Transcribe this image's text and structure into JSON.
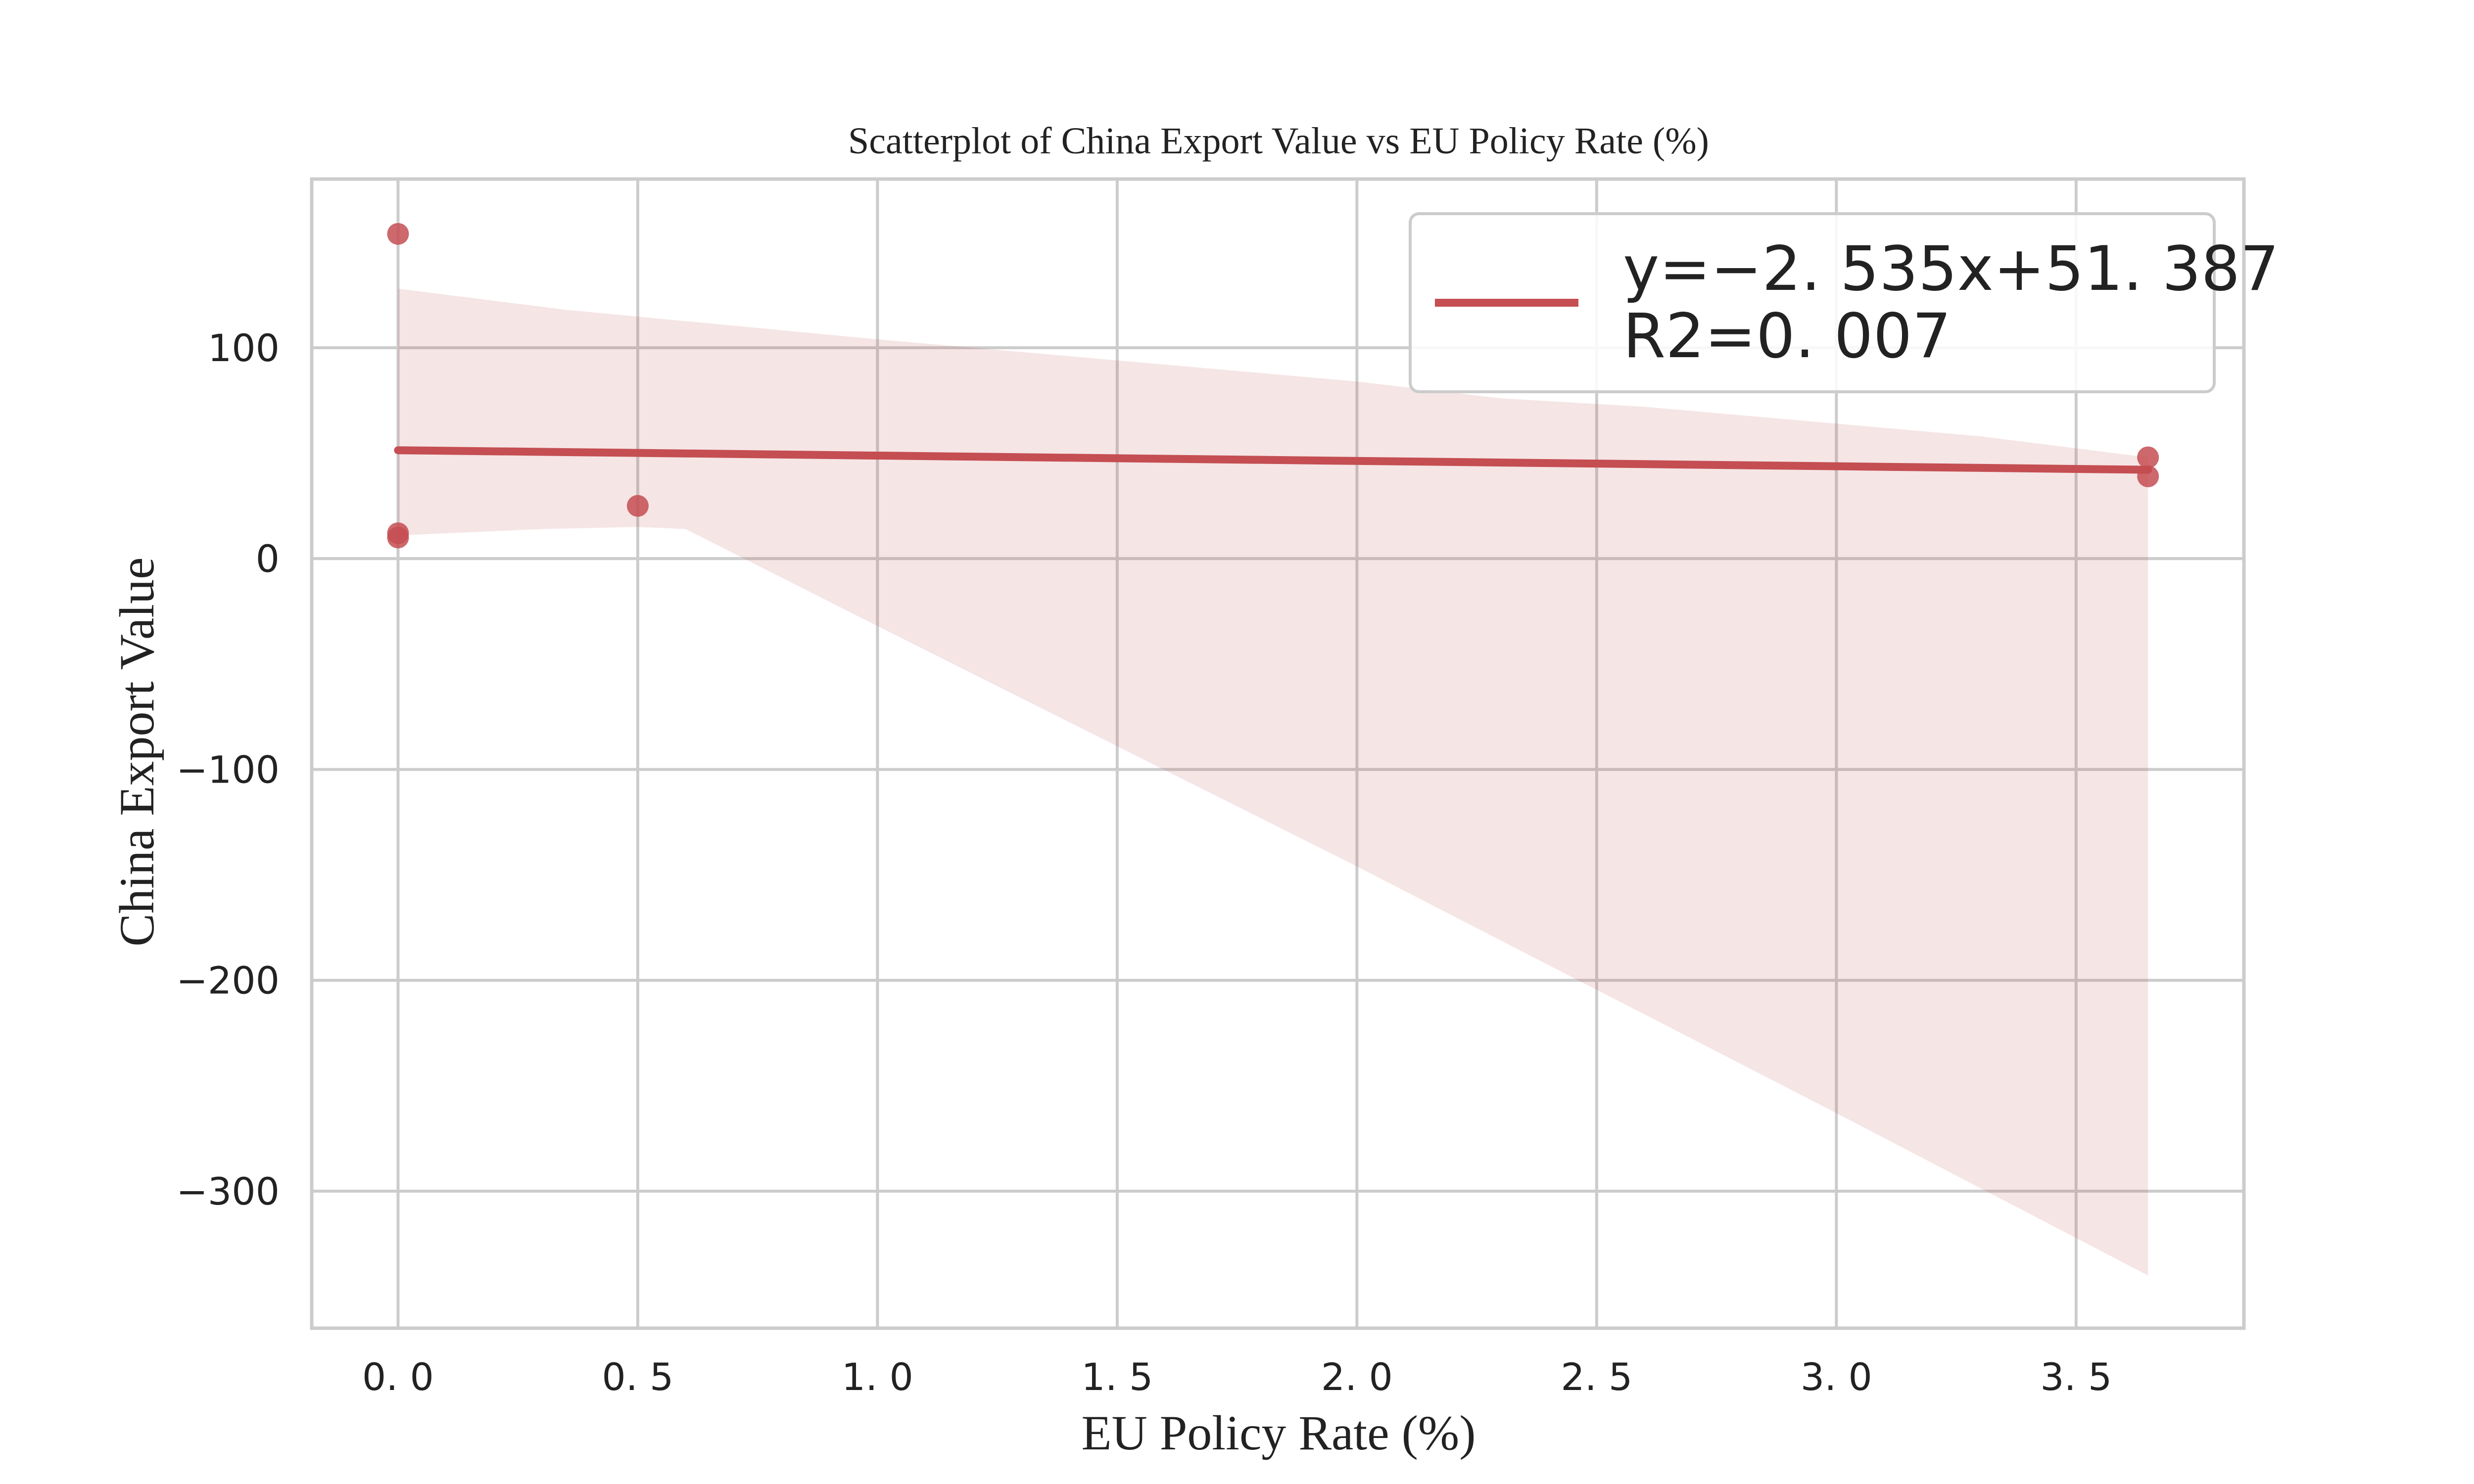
{
  "chart_data": {
    "type": "scatter",
    "title": "Scatterplot of China Export Value vs EU Policy Rate (%)",
    "xlabel": "EU Policy Rate (%)",
    "ylabel": "China Export Value",
    "xlim": [
      -0.18,
      3.85
    ],
    "ylim": [
      -365,
      180
    ],
    "x_ticks": [
      0.0,
      0.5,
      1.0,
      1.5,
      2.0,
      2.5,
      3.0,
      3.5
    ],
    "x_tick_labels": [
      "0. 0",
      "0. 5",
      "1. 0",
      "1. 5",
      "2. 0",
      "2. 5",
      "3. 0",
      "3. 5"
    ],
    "y_ticks": [
      100,
      0,
      -100,
      -200,
      -300
    ],
    "y_tick_labels": [
      "100",
      "0",
      "−100",
      "−200",
      "−300"
    ],
    "grid": true,
    "points": [
      {
        "x": 0.0,
        "y": 154
      },
      {
        "x": 0.0,
        "y": 12
      },
      {
        "x": 0.0,
        "y": 10
      },
      {
        "x": 0.5,
        "y": 25
      },
      {
        "x": 3.65,
        "y": 48
      },
      {
        "x": 3.65,
        "y": 39
      }
    ],
    "regression": {
      "slope": -2.535,
      "intercept": 51.387,
      "x_range": [
        0.0,
        3.65
      ],
      "ci_upper": [
        [
          0.0,
          128
        ],
        [
          0.35,
          118
        ],
        [
          1.0,
          104
        ],
        [
          1.5,
          94
        ],
        [
          2.0,
          84
        ],
        [
          2.3,
          76
        ],
        [
          2.6,
          72
        ],
        [
          3.0,
          64
        ],
        [
          3.3,
          58
        ],
        [
          3.65,
          48
        ]
      ],
      "ci_lower": [
        [
          0.0,
          11
        ],
        [
          0.3,
          14
        ],
        [
          0.5,
          15
        ],
        [
          0.6,
          14
        ],
        [
          1.0,
          -32
        ],
        [
          2.0,
          -146
        ],
        [
          3.0,
          -263
        ],
        [
          3.65,
          -340
        ]
      ]
    },
    "legend": {
      "position": "top-right",
      "entries": [
        "y=−2. 535x+51. 387",
        "R2=0. 007"
      ]
    },
    "colors": {
      "line": "#c44e52",
      "points": "#c44e52",
      "band": "#c44e52"
    }
  }
}
